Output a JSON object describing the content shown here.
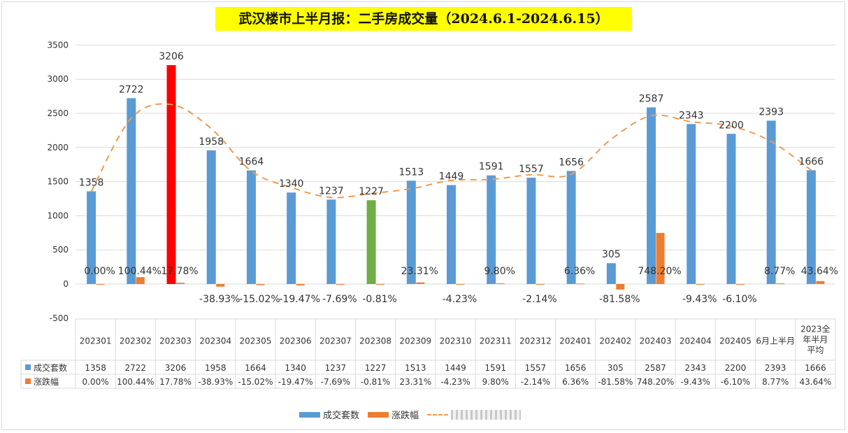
{
  "title": "武汉楼市上半月报：二手房成交量（2024.6.1-2024.6.15）",
  "colors": {
    "bar": "#5b9bd5",
    "highlight_max": "#ff0000",
    "highlight_min": "#70ad47",
    "change": "#ed7d31",
    "trend": "#f29a4b",
    "grid": "#d9d9d9"
  },
  "legend": {
    "volume": "成交套数",
    "change": "涨跌幅"
  },
  "chart_data": {
    "type": "bar",
    "categories": [
      "202301",
      "202302",
      "202303",
      "202304",
      "202305",
      "202306",
      "202307",
      "202308",
      "202309",
      "202310",
      "202311",
      "202312",
      "202401",
      "202402",
      "202403",
      "202404",
      "202405",
      "6月上半月",
      "2023全年半月平均"
    ],
    "series": [
      {
        "name": "成交套数",
        "values": [
          1358,
          2722,
          3206,
          1958,
          1664,
          1340,
          1237,
          1227,
          1513,
          1449,
          1591,
          1557,
          1656,
          305,
          2587,
          2343,
          2200,
          2393,
          1666
        ]
      },
      {
        "name": "涨跌幅",
        "values": [
          0.0,
          100.44,
          17.78,
          -38.93,
          -15.02,
          -19.47,
          -7.69,
          -0.81,
          23.31,
          -4.23,
          9.8,
          -2.14,
          6.36,
          -81.58,
          748.2,
          -9.43,
          -6.1,
          8.77,
          43.64
        ],
        "labels": [
          "0.00%",
          "100.44%",
          "17.78%",
          "-38.93%",
          "-15.02%",
          "-19.47%",
          "-7.69%",
          "-0.81%",
          "23.31%",
          "-4.23%",
          "9.80%",
          "-2.14%",
          "6.36%",
          "-81.58%",
          "748.20%",
          "-9.43%",
          "-6.10%",
          "8.77%",
          "43.64%"
        ]
      }
    ],
    "highlight": {
      "max_index": 2,
      "min_index": 7
    },
    "trendline": "polynomial, dashed",
    "ylim": [
      -500,
      3500
    ],
    "yticks": [
      -500,
      0,
      500,
      1000,
      1500,
      2000,
      2500,
      3000,
      3500
    ],
    "grid": true,
    "data_table": true,
    "legend_position": "bottom"
  }
}
